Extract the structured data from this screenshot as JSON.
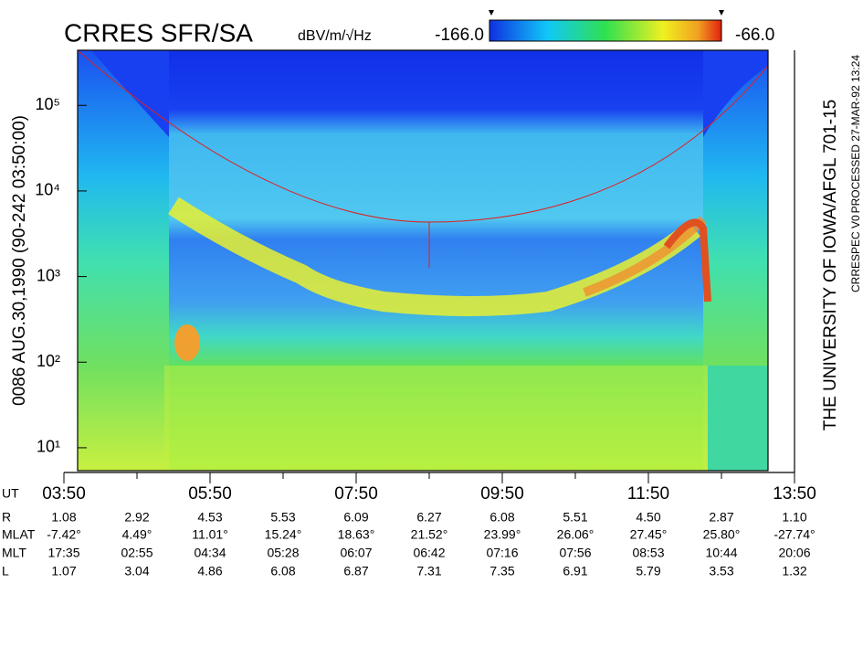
{
  "chart_data": {
    "type": "spectrogram",
    "title": "CRRES SFR/SA",
    "colorbar": {
      "label": "dBV/m/√Hz",
      "min": {
        "value": -166,
        "label": "-166.0"
      },
      "max": {
        "value": -66,
        "label": "-66.0"
      }
    },
    "left_label": "0086  AUG.30,1990  (90-242 03:50:00)",
    "right_label": "THE UNIVERSITY OF IOWA/AFGL  701-15",
    "processed_label": "PROCESSED 27-MAR-92  13:24",
    "version_label": "CRRESPEC V0",
    "x_label": "UT",
    "xlim": [
      230,
      830
    ],
    "xticks": [
      {
        "value": 230,
        "label": "03:50"
      },
      {
        "value": 350,
        "label": "05:50"
      },
      {
        "value": 470,
        "label": "07:50"
      },
      {
        "value": 590,
        "label": "09:50"
      },
      {
        "value": 710,
        "label": "11:50"
      },
      {
        "value": 830,
        "label": "13:50"
      }
    ],
    "xminor_ticks": [
      290,
      410,
      530,
      650,
      770
    ],
    "ylim": [
      5.4,
      440000
    ],
    "log_scale": true,
    "yticks": [
      {
        "value": 10,
        "label": "10¹"
      },
      {
        "value": 100,
        "label": "10²"
      },
      {
        "value": 1000,
        "label": "10³"
      },
      {
        "value": 10000,
        "label": "10⁴"
      },
      {
        "value": 100000,
        "label": "10⁵"
      }
    ],
    "ephemeris": [
      {
        "label": "R",
        "values": [
          "1.08",
          "2.92",
          "4.53",
          "5.53",
          "6.09",
          "6.27",
          "6.08",
          "5.51",
          "4.50",
          "2.87",
          "1.10"
        ]
      },
      {
        "label": "MLAT",
        "values": [
          "-7.42°",
          "4.49°",
          "11.01°",
          "15.24°",
          "18.63°",
          "21.52°",
          "23.99°",
          "26.06°",
          "27.45°",
          "25.80°",
          "-27.74°"
        ]
      },
      {
        "label": "MLT",
        "values": [
          "17:35",
          "02:55",
          "04:34",
          "05:28",
          "06:07",
          "06:42",
          "07:16",
          "07:56",
          "08:53",
          "10:44",
          "20:06"
        ]
      },
      {
        "label": "L",
        "values": [
          "1.07",
          "3.04",
          "4.86",
          "6.08",
          "6.87",
          "7.31",
          "7.35",
          "6.91",
          "5.79",
          "3.53",
          "1.32"
        ]
      }
    ]
  }
}
